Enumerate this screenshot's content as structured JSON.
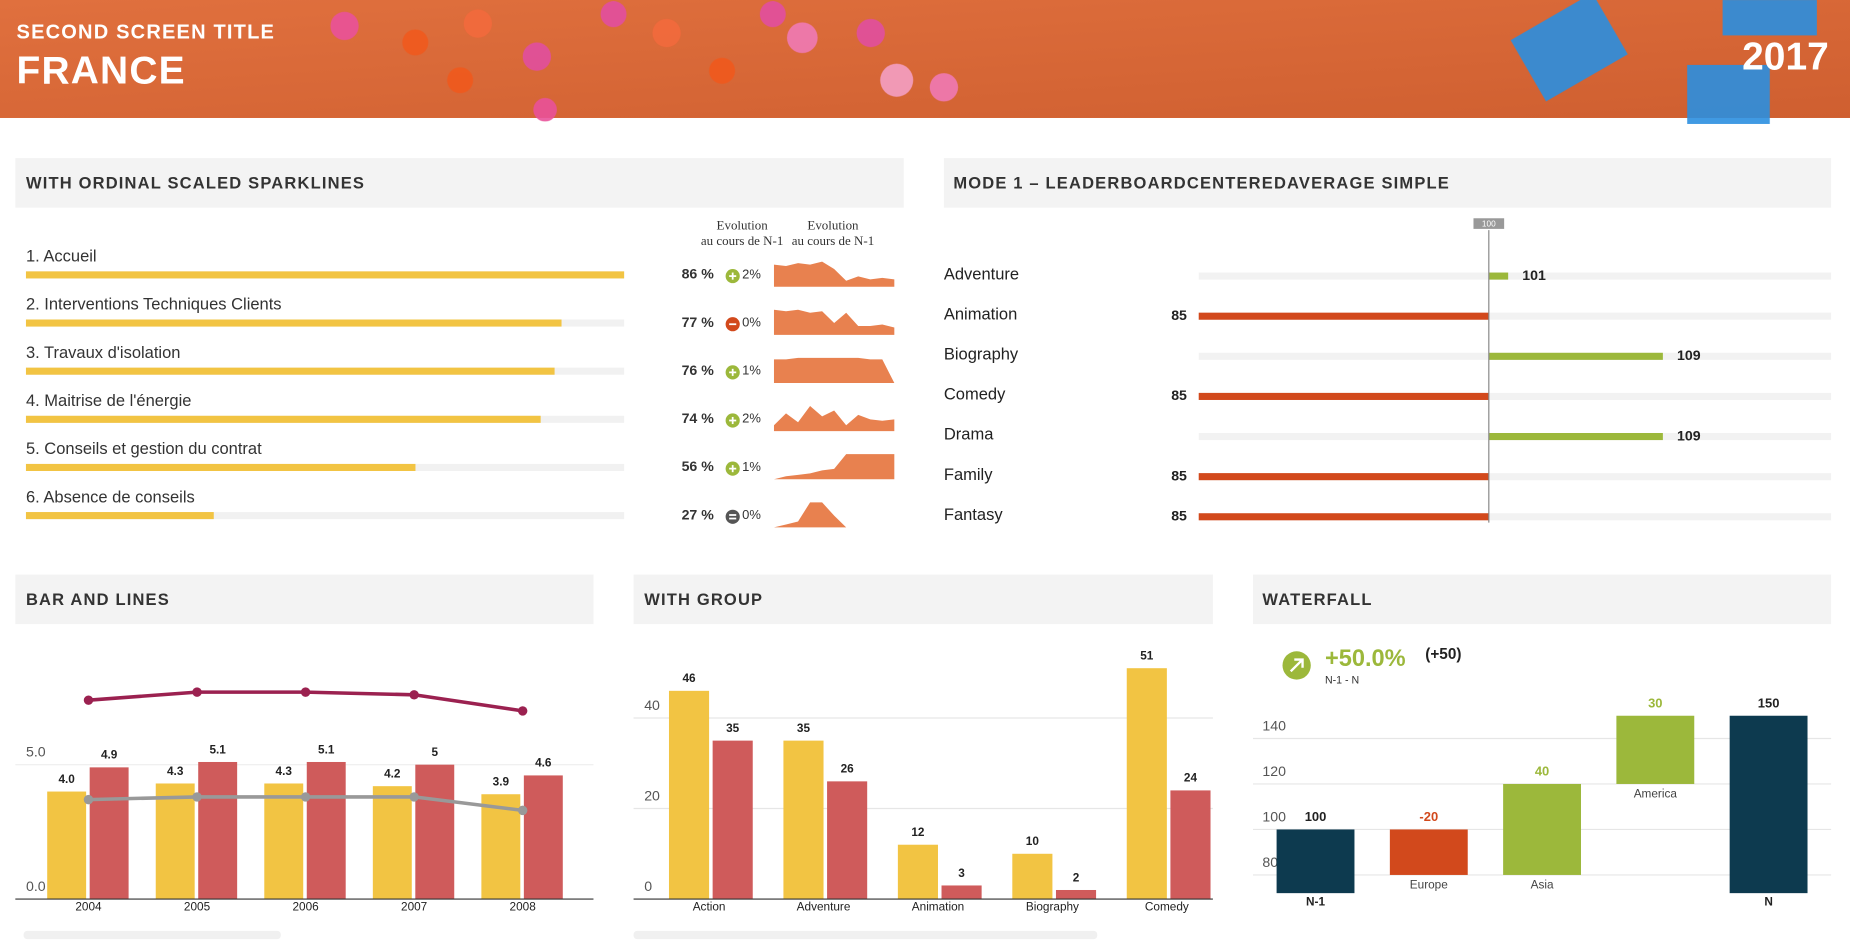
{
  "header": {
    "subtitle": "SECOND SCREEN TITLE",
    "title": "FRANCE",
    "year": "2017"
  },
  "chart_data": [
    {
      "type": "sparkline-leaderboard",
      "title": "WITH ORDINAL SCALED SPARKLINES",
      "column_headers": [
        [
          "Evolution",
          "au cours de N-1"
        ],
        [
          "Evolution",
          "au cours de N-1"
        ]
      ],
      "categories": [
        "1. Accueil",
        "2. Interventions Techniques Clients",
        "3. Travaux d'isolation",
        "4. Maitrise de l'énergie",
        "5. Conseils et gestion du contrat",
        "6. Absence de conseils"
      ],
      "values": [
        86,
        77,
        76,
        74,
        56,
        27
      ],
      "value_labels": [
        "86 %",
        "77 %",
        "76 %",
        "74 %",
        "56 %",
        "27 %"
      ],
      "color": "#f2c443",
      "evolution": [
        2,
        0,
        1,
        2,
        1,
        0
      ],
      "evolution_labels": [
        "2%",
        "0%",
        "1%",
        "2%",
        "1%",
        "0%"
      ],
      "trend": [
        "up",
        "down",
        "up",
        "up",
        "up",
        "flat"
      ],
      "trend_colors": {
        "up": "#9cb83b",
        "down": "#d2491c",
        "flat": "#555555"
      },
      "spark_color": "#e8814f",
      "spark_ylim": [
        0,
        100
      ],
      "sparklines": [
        [
          75,
          70,
          80,
          75,
          85,
          60,
          20,
          35,
          25,
          30,
          25
        ],
        [
          85,
          80,
          85,
          75,
          80,
          40,
          75,
          30,
          30,
          35,
          25
        ],
        [
          80,
          80,
          85,
          85,
          85,
          85,
          85,
          85,
          80,
          80,
          0
        ],
        [
          20,
          60,
          30,
          85,
          50,
          70,
          20,
          55,
          40,
          35,
          40
        ],
        [
          0,
          10,
          15,
          20,
          30,
          35,
          85,
          85,
          85,
          85,
          85
        ],
        [
          0,
          10,
          20,
          85,
          85,
          40,
          0,
          0,
          0,
          0,
          0
        ]
      ]
    },
    {
      "type": "centered-leaderboard",
      "title": "MODE 1 – LEADERBOARDCENTEREDAVERAGE SIMPLE",
      "reference": 100,
      "categories": [
        "Adventure",
        "Animation",
        "Biography",
        "Comedy",
        "Drama",
        "Family",
        "Fantasy"
      ],
      "values": [
        101,
        85,
        109,
        85,
        109,
        85,
        85
      ],
      "above_color": "#9cb83b",
      "below_color": "#d2491c",
      "xlim": [
        85,
        117.7
      ]
    },
    {
      "type": "bar-line",
      "title": "BAR AND LINES",
      "categories": [
        "2004",
        "2005",
        "2006",
        "2007",
        "2008"
      ],
      "series": [
        {
          "kind": "bar",
          "color": "#f2c443",
          "values": [
            4.0,
            4.3,
            4.3,
            4.2,
            3.9
          ],
          "value_labels": [
            "4.0",
            "4.3",
            "4.3",
            "4.2",
            "3.9"
          ]
        },
        {
          "kind": "bar",
          "color": "#cf5b5b",
          "values": [
            4.9,
            5.1,
            5.1,
            5.0,
            4.6
          ]
        },
        {
          "kind": "line",
          "color": "#9b2150",
          "values": [
            7.4,
            7.7,
            7.7,
            7.6,
            7.0
          ]
        },
        {
          "kind": "line",
          "color": "#999999",
          "values": [
            3.7,
            3.8,
            3.8,
            3.8,
            3.3
          ]
        }
      ],
      "ylim": [
        0,
        9
      ],
      "yticks": [
        {
          "value": 0,
          "label": "0.0"
        },
        {
          "value": 5,
          "label": "5.0"
        }
      ],
      "grid": true
    },
    {
      "type": "grouped-bar",
      "title": "WITH GROUP",
      "categories": [
        "Action",
        "Adventure",
        "Animation",
        "Biography",
        "Comedy"
      ],
      "series": [
        {
          "color": "#f2c443",
          "values": [
            46,
            35,
            12,
            10,
            51
          ]
        },
        {
          "color": "#cf5b5b",
          "values": [
            35,
            26,
            3,
            2,
            24
          ]
        }
      ],
      "ylim": [
        0,
        55
      ],
      "yticks": [
        0,
        20,
        40
      ],
      "grid": true
    },
    {
      "type": "waterfall",
      "title": "WATERFALL",
      "headline": "+50.0%",
      "delta": "(+50)",
      "headline_caption": "N-1 - N",
      "categories": [
        "N-1",
        "Europe",
        "Asia",
        "America",
        "N"
      ],
      "values": [
        100,
        -20,
        40,
        30,
        150
      ],
      "kinds": [
        "total",
        "delta",
        "delta",
        "delta",
        "total"
      ],
      "colors": [
        "#0d3a4f",
        "#d2491c",
        "#9cb83b",
        "#9cb83b",
        "#0d3a4f"
      ],
      "ylim": [
        72,
        155
      ],
      "yticks": [
        80,
        100,
        120,
        140
      ],
      "grid": true
    }
  ]
}
